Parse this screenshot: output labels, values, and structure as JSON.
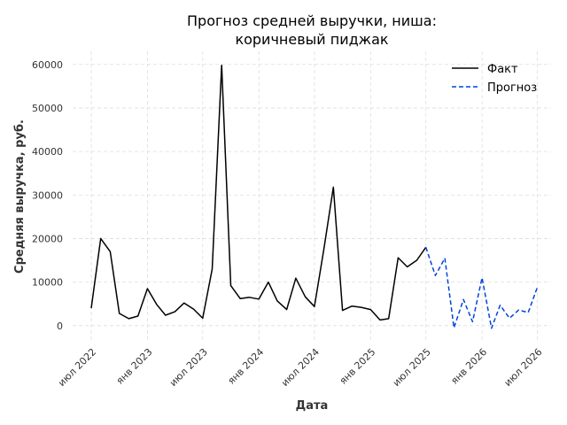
{
  "chart_data": {
    "type": "line",
    "title_lines": [
      "Прогноз средней выручки, ниша:",
      "коричневый пиджак"
    ],
    "xlabel": "Дата",
    "ylabel": "Средняя выручка, руб.",
    "ylim": [
      -3500,
      63000
    ],
    "yticks": [
      0,
      10000,
      20000,
      30000,
      40000,
      50000,
      60000
    ],
    "ytick_labels": [
      "0",
      "10000",
      "20000",
      "30000",
      "40000",
      "50000",
      "60000"
    ],
    "xlim": [
      "2022-05-01",
      "2026-08-15"
    ],
    "xticks": [
      "2022-07-01",
      "2023-01-01",
      "2023-07-01",
      "2024-01-01",
      "2024-07-01",
      "2025-01-01",
      "2025-07-01",
      "2026-01-01",
      "2026-07-01"
    ],
    "xtick_labels": [
      "июл 2022",
      "янв 2023",
      "июл 2023",
      "янв 2024",
      "июл 2024",
      "янв 2025",
      "июл 2025",
      "янв 2026",
      "июл 2026"
    ],
    "grid": true,
    "legend_position": "top-right",
    "series": [
      {
        "name": "Факт",
        "color": "#000000",
        "style": "solid",
        "x": [
          "2022-07-01",
          "2022-08-01",
          "2022-09-01",
          "2022-10-01",
          "2022-11-01",
          "2022-12-01",
          "2023-01-01",
          "2023-02-01",
          "2023-03-01",
          "2023-04-01",
          "2023-05-01",
          "2023-06-01",
          "2023-07-01",
          "2023-08-01",
          "2023-09-01",
          "2023-10-01",
          "2023-11-01",
          "2023-12-01",
          "2024-01-01",
          "2024-02-01",
          "2024-03-01",
          "2024-04-01",
          "2024-05-01",
          "2024-06-01",
          "2024-07-01",
          "2024-08-01",
          "2024-09-01",
          "2024-10-01",
          "2024-11-01",
          "2024-12-01",
          "2025-01-01",
          "2025-02-01",
          "2025-03-01",
          "2025-04-01",
          "2025-05-01",
          "2025-06-01",
          "2025-07-01"
        ],
        "values": [
          4000,
          20000,
          17000,
          2800,
          1600,
          2200,
          8500,
          4800,
          2400,
          3200,
          5200,
          3800,
          1700,
          13000,
          59800,
          9200,
          6200,
          6500,
          6100,
          10000,
          5700,
          3700,
          10900,
          6600,
          4400,
          17600,
          31800,
          3500,
          4500,
          4200,
          3700,
          1300,
          1600,
          15600,
          13500,
          15000,
          18000
        ]
      },
      {
        "name": "Прогноз",
        "color": "#0044dd",
        "style": "dashed",
        "x": [
          "2025-07-01",
          "2025-08-01",
          "2025-09-01",
          "2025-10-01",
          "2025-11-01",
          "2025-12-01",
          "2026-01-01",
          "2026-02-01",
          "2026-03-01",
          "2026-04-01",
          "2026-05-01",
          "2026-06-01",
          "2026-07-01"
        ],
        "values": [
          18000,
          11500,
          15500,
          -500,
          6000,
          900,
          11000,
          -600,
          4700,
          1700,
          3600,
          3000,
          8800
        ]
      }
    ]
  }
}
